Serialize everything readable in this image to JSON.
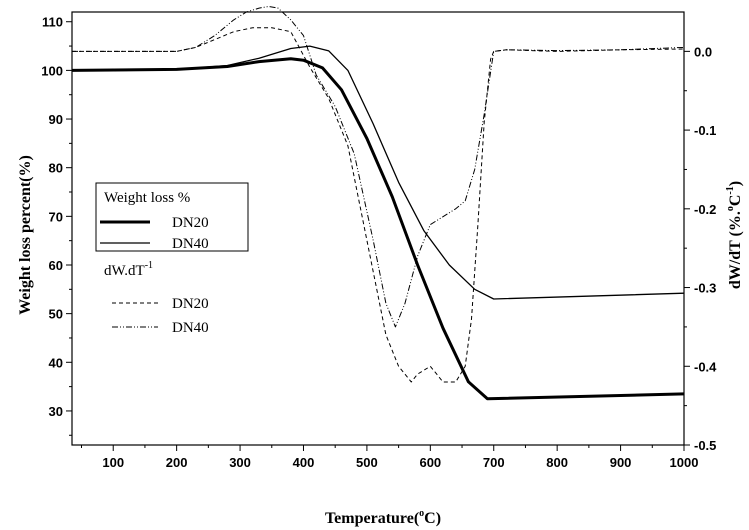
{
  "chart_data": {
    "type": "line",
    "xlabel": "Temperature",
    "xlabel_unit": "C",
    "xlabel_sup": "o",
    "ylabel_left": "Weight loss percent(%)",
    "ylabel_right": "dW/dT (%.",
    "ylabel_right_unit": "C",
    "ylabel_right_sup1": "o",
    "ylabel_right_sup2": "-1",
    "ylabel_right_close": ")",
    "xlim": [
      35,
      1000
    ],
    "ylim_left": [
      23,
      112
    ],
    "ylim_right": [
      -0.5,
      0.05
    ],
    "xticks": [
      100,
      200,
      300,
      400,
      500,
      600,
      700,
      800,
      900,
      1000
    ],
    "yticks_left": [
      30,
      40,
      50,
      60,
      70,
      80,
      90,
      100,
      110
    ],
    "yticks_right": [
      -0.5,
      -0.4,
      -0.3,
      -0.2,
      -0.1,
      0.0
    ],
    "ytick_labels_right": [
      "-0.5",
      "-0.4",
      "-0.3",
      "-0.2",
      "-0.1",
      "0.0"
    ],
    "legend": {
      "group1_title": "Weight loss %",
      "group2_title": "dW.dT",
      "group2_sup": "-1",
      "entries": [
        "DN20",
        "DN40",
        "DN20",
        "DN40"
      ]
    },
    "series": [
      {
        "name": "DN20",
        "axis": "left",
        "style": "thick",
        "x": [
          35,
          200,
          280,
          330,
          380,
          400,
          430,
          460,
          500,
          540,
          580,
          620,
          660,
          690,
          1000
        ],
        "y": [
          100,
          100.2,
          100.8,
          101.8,
          102.4,
          102.1,
          100.5,
          96,
          86,
          74,
          60,
          47,
          36,
          32.5,
          33.5
        ]
      },
      {
        "name": "DN40",
        "axis": "left",
        "style": "thin",
        "x": [
          35,
          200,
          280,
          330,
          380,
          410,
          440,
          470,
          510,
          550,
          590,
          630,
          670,
          700,
          1000
        ],
        "y": [
          100,
          100.2,
          101,
          102.5,
          104.5,
          105,
          104,
          100,
          89,
          77,
          67,
          60,
          55,
          53,
          54.2
        ]
      },
      {
        "name": "DN20",
        "axis": "right",
        "style": "dashed",
        "x": [
          35,
          200,
          230,
          260,
          290,
          320,
          350,
          380,
          410,
          440,
          470,
          500,
          530,
          550,
          570,
          580,
          600,
          610,
          620,
          640,
          655,
          665,
          675,
          685,
          695,
          700,
          720,
          800,
          900,
          1000
        ],
        "y": [
          0,
          0.0,
          0.005,
          0.015,
          0.025,
          0.03,
          0.03,
          0.025,
          -0.02,
          -0.06,
          -0.12,
          -0.24,
          -0.36,
          -0.4,
          -0.42,
          -0.41,
          -0.4,
          -0.41,
          -0.42,
          -0.42,
          -0.4,
          -0.34,
          -0.22,
          -0.09,
          -0.01,
          0.0,
          0.002,
          0.0,
          0.002,
          0.003
        ]
      },
      {
        "name": "DN40",
        "axis": "right",
        "style": "dashdotdot",
        "x": [
          35,
          200,
          230,
          260,
          290,
          310,
          330,
          345,
          360,
          380,
          400,
          420,
          450,
          480,
          510,
          530,
          545,
          560,
          580,
          600,
          620,
          640,
          655,
          670,
          685,
          700,
          720,
          800,
          900,
          1000
        ],
        "y": [
          0,
          0.0,
          0.005,
          0.02,
          0.04,
          0.05,
          0.055,
          0.057,
          0.055,
          0.04,
          0.02,
          -0.03,
          -0.07,
          -0.13,
          -0.24,
          -0.32,
          -0.35,
          -0.32,
          -0.26,
          -0.22,
          -0.21,
          -0.2,
          -0.19,
          -0.15,
          -0.08,
          0.0,
          0.002,
          0.001,
          0.002,
          0.005
        ]
      }
    ]
  }
}
